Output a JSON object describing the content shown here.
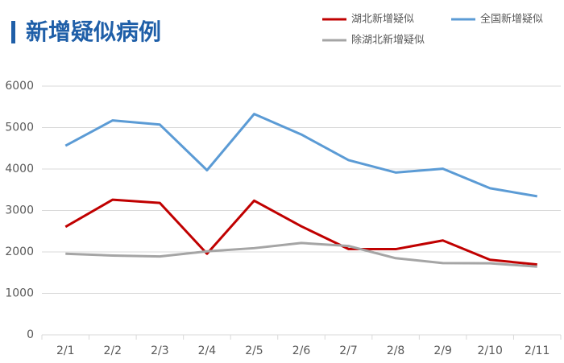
{
  "chart_data": {
    "type": "line",
    "title": "新增疑似病例",
    "categories": [
      "2/1",
      "2/2",
      "2/3",
      "2/4",
      "2/5",
      "2/6",
      "2/7",
      "2/8",
      "2/9",
      "2/10",
      "2/11"
    ],
    "series": [
      {
        "name": "湖北新增疑似",
        "color": "#c00000",
        "values": [
          2606,
          3260,
          3182,
          1957,
          3237,
          2618,
          2071,
          2067,
          2277,
          1810,
          1697
        ]
      },
      {
        "name": "全国新增疑似",
        "color": "#5b9bd5",
        "values": [
          4562,
          5173,
          5072,
          3971,
          5328,
          4833,
          4214,
          3916,
          4008,
          3536,
          3342
        ]
      },
      {
        "name": "除湖北新增疑似",
        "color": "#a5a5a5",
        "values": [
          1956,
          1913,
          1890,
          2014,
          2091,
          2215,
          2143,
          1849,
          1731,
          1726,
          1645
        ]
      }
    ],
    "ylim": [
      0,
      6000
    ],
    "yticks": [
      0,
      1000,
      2000,
      3000,
      4000,
      5000,
      6000
    ],
    "grid": true
  }
}
